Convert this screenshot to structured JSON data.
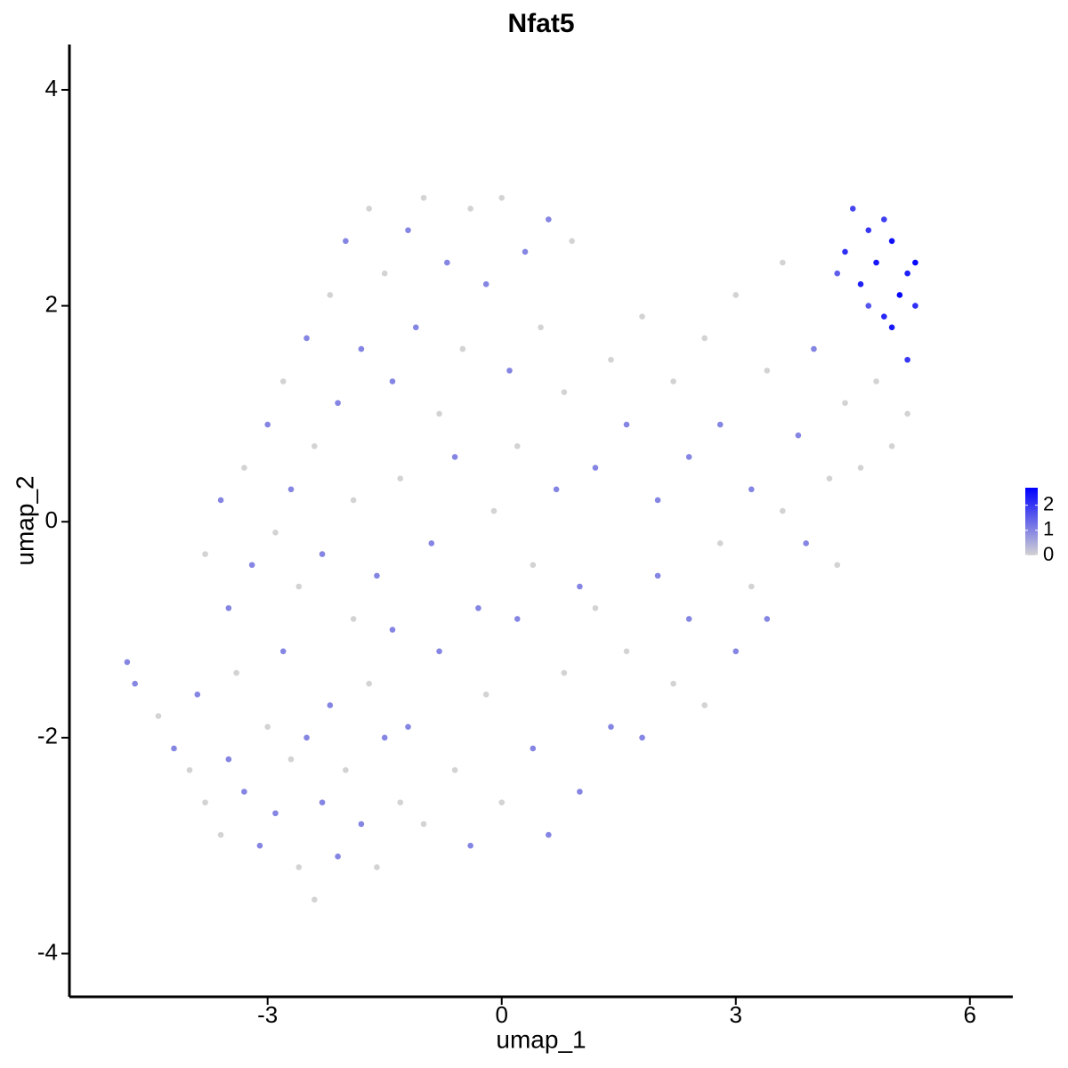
{
  "chart_data": {
    "type": "scatter",
    "title": "Nfat5",
    "x_label": "umap_1",
    "y_label": "umap_2",
    "xlim": [
      -5.54,
      6.55
    ],
    "ylim": [
      -4.4,
      4.42
    ],
    "xticks": [
      -3,
      0,
      3,
      6
    ],
    "yticks": [
      -4,
      -2,
      0,
      2,
      4
    ],
    "color_low": "#d3d3d3",
    "color_high": "#0000ff",
    "color_limits": [
      0,
      2.7
    ],
    "colorbar_ticks": [
      0,
      1,
      2
    ],
    "x": [
      -4.8,
      -4.7,
      -4.4,
      -4.2,
      -4.0,
      -3.9,
      -3.8,
      -3.6,
      -3.5,
      -3.4,
      -3.3,
      -3.1,
      -3.0,
      -2.9,
      -2.8,
      -2.7,
      -2.6,
      -2.5,
      -2.4,
      -2.3,
      -2.2,
      -2.1,
      -2.0,
      -1.9,
      -1.8,
      -1.7,
      -1.6,
      -1.5,
      -1.4,
      -1.3,
      -3.8,
      -3.6,
      -3.5,
      -3.3,
      -3.2,
      -3.0,
      -2.9,
      -2.8,
      -2.7,
      -2.6,
      -2.5,
      -2.4,
      -2.3,
      -2.2,
      -2.1,
      -2.0,
      -1.9,
      -1.8,
      -1.7,
      -1.6,
      -1.5,
      -1.4,
      -1.3,
      -1.2,
      -1.1,
      -1.0,
      -0.9,
      -0.8,
      -0.7,
      -0.6,
      -0.5,
      -0.4,
      -0.3,
      -0.2,
      -0.1,
      0.0,
      0.1,
      0.2,
      0.3,
      0.4,
      0.5,
      0.6,
      0.7,
      0.8,
      0.9,
      1.0,
      -1.2,
      -1.0,
      -0.8,
      -0.6,
      -0.4,
      -0.2,
      0.0,
      0.2,
      0.4,
      0.6,
      0.8,
      1.0,
      1.2,
      1.4,
      1.6,
      1.8,
      2.0,
      2.2,
      2.4,
      2.6,
      2.8,
      3.0,
      3.2,
      3.4,
      3.6,
      1.2,
      1.4,
      1.6,
      1.8,
      2.0,
      2.2,
      2.4,
      2.6,
      2.8,
      3.0,
      3.2,
      3.4,
      3.6,
      3.8,
      4.0,
      4.2,
      4.4,
      4.6,
      4.8,
      5.0,
      5.2,
      3.9,
      4.3,
      4.4,
      4.5,
      4.6,
      4.7,
      4.8,
      4.9,
      5.0,
      5.1,
      5.2,
      5.3,
      5.0,
      4.7,
      5.3,
      4.9,
      5.2,
      4.3
    ],
    "y": [
      -1.3,
      -1.5,
      -1.8,
      -2.1,
      -2.3,
      -1.6,
      -2.6,
      -2.9,
      -2.2,
      -1.4,
      -2.5,
      -3.0,
      -1.9,
      -2.7,
      -1.2,
      -2.2,
      -3.2,
      -2.0,
      -3.5,
      -2.6,
      -1.7,
      -3.1,
      -2.3,
      -0.9,
      -2.8,
      -1.5,
      -3.2,
      -2.0,
      -1.0,
      -2.6,
      -0.3,
      0.2,
      -0.8,
      0.5,
      -0.4,
      0.9,
      -0.1,
      1.3,
      0.3,
      -0.6,
      1.7,
      0.7,
      -0.3,
      2.1,
      1.1,
      2.6,
      0.2,
      1.6,
      2.9,
      -0.5,
      2.3,
      1.3,
      0.4,
      2.7,
      1.8,
      3.0,
      -0.2,
      1.0,
      2.4,
      0.6,
      1.6,
      2.9,
      -0.8,
      2.2,
      0.1,
      3.0,
      1.4,
      0.7,
      2.5,
      -0.4,
      1.8,
      2.8,
      0.3,
      1.2,
      2.6,
      -0.6,
      -1.9,
      -2.8,
      -1.2,
      -2.3,
      -3.0,
      -1.6,
      -2.6,
      -0.9,
      -2.1,
      -2.9,
      -1.4,
      -2.5,
      -0.8,
      -1.9,
      -1.2,
      -2.0,
      -0.5,
      -1.5,
      -0.9,
      -1.7,
      -0.2,
      -1.2,
      -0.6,
      -0.9,
      0.1,
      0.5,
      1.5,
      0.9,
      1.9,
      0.2,
      1.3,
      0.6,
      1.7,
      0.9,
      2.1,
      0.3,
      1.4,
      2.4,
      0.8,
      1.6,
      0.4,
      1.1,
      0.5,
      1.3,
      0.7,
      1.0,
      -0.2,
      -0.4,
      2.5,
      2.9,
      2.2,
      2.7,
      2.4,
      1.9,
      2.6,
      2.1,
      2.3,
      2.0,
      1.8,
      2.0,
      2.4,
      2.8,
      1.5,
      2.3
    ],
    "values": [
      1,
      1,
      0,
      1,
      0,
      1,
      0,
      0,
      1,
      0,
      1,
      1,
      0,
      1,
      1,
      0,
      0,
      1,
      0,
      1,
      1,
      1,
      0,
      0,
      1,
      0,
      0,
      1,
      1,
      0,
      0,
      1,
      1,
      0,
      1,
      1,
      0,
      0,
      1,
      0,
      1,
      0,
      1,
      0,
      1,
      1,
      0,
      1,
      0,
      1,
      0,
      1,
      0,
      1,
      1,
      0,
      1,
      0,
      1,
      1,
      0,
      0,
      1,
      1,
      0,
      0,
      1,
      0,
      1,
      0,
      0,
      1,
      1,
      0,
      0,
      1,
      1,
      0,
      1,
      0,
      1,
      0,
      0,
      1,
      1,
      1,
      0,
      1,
      0,
      1,
      0,
      1,
      1,
      0,
      1,
      0,
      0,
      1,
      0,
      1,
      0,
      1,
      0,
      1,
      0,
      1,
      0,
      1,
      0,
      1,
      0,
      1,
      0,
      0,
      1,
      1,
      0,
      0,
      0,
      0,
      0,
      0,
      1,
      0,
      2.1,
      1.8,
      2.3,
      2.0,
      2.4,
      2.2,
      2.5,
      2.6,
      2.3,
      2.1,
      2.4,
      1.6,
      2.6,
      1.9,
      2.0,
      1.5
    ]
  }
}
